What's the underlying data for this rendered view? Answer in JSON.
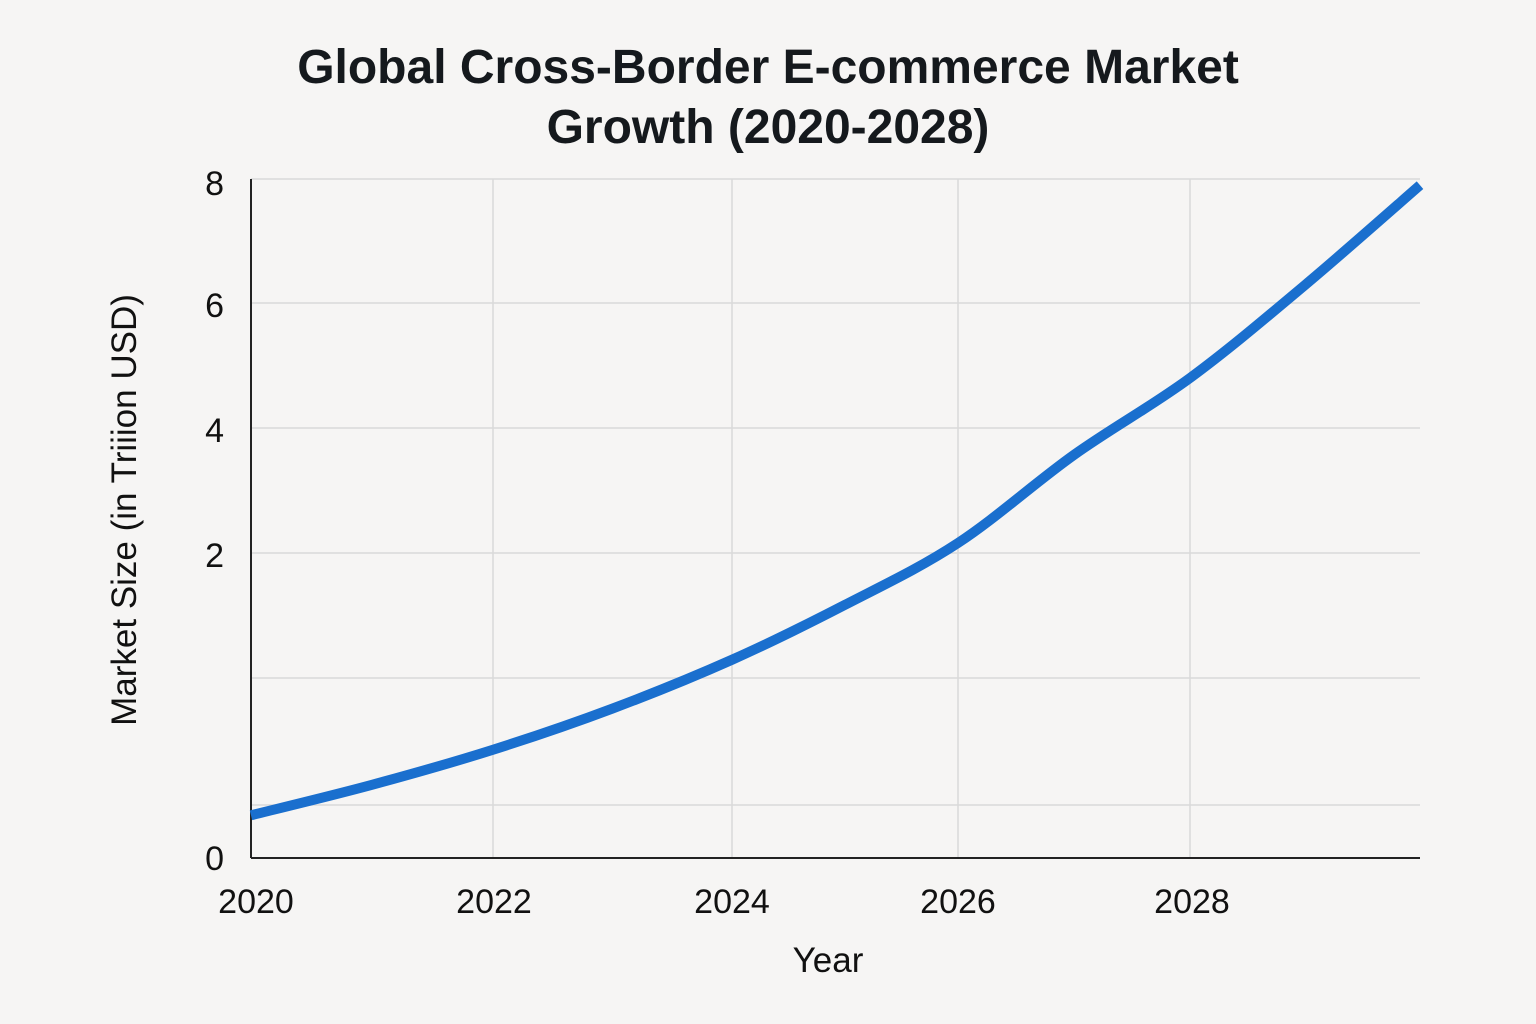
{
  "chart_data": {
    "type": "line",
    "title_lines": [
      "Global Cross-Border E-commerce Market",
      "Growth (2020-2028)"
    ],
    "xlabel": "Year",
    "ylabel": "Market Size (in Triiion USD)",
    "x_ticks": [
      "2020",
      "2022",
      "2024",
      "2026",
      "2028"
    ],
    "y_ticks": [
      "0",
      "2",
      "4",
      "6",
      "8"
    ],
    "ylim": [
      0,
      8
    ],
    "xlim": [
      2020,
      2030
    ],
    "grid": true,
    "series": [
      {
        "name": "Market Size",
        "color": "#1a6fce",
        "x": [
          2020,
          2021,
          2022,
          2023,
          2024,
          2025,
          2026,
          2027,
          2028,
          2029,
          2030
        ],
        "y": [
          0.28,
          0.48,
          0.71,
          0.98,
          1.3,
          1.66,
          2.16,
          3.57,
          4.8,
          6.29,
          7.9
        ]
      }
    ]
  }
}
